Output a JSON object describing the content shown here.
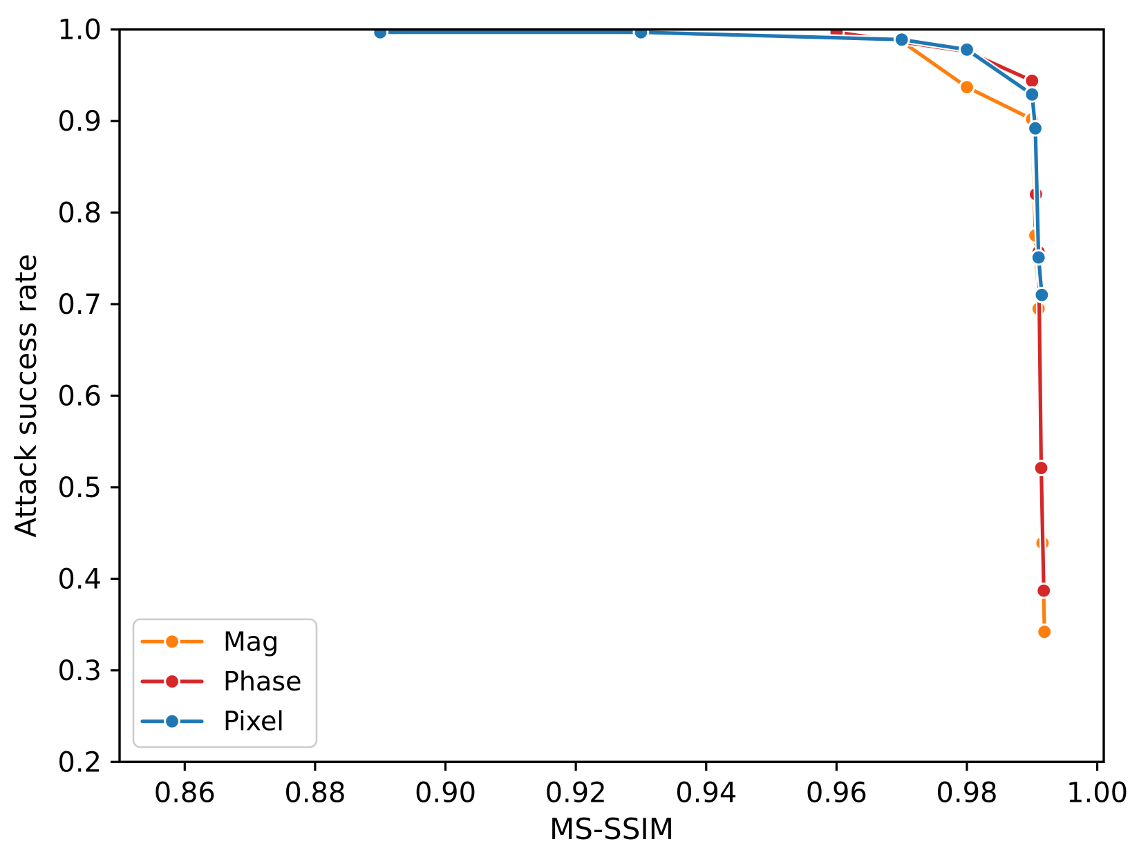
{
  "figure": {
    "background": "#ffffff",
    "axis_color": "#000000"
  },
  "chart_data": {
    "type": "line",
    "title": "",
    "xlabel": "MS-SSIM",
    "ylabel": "Attack success rate",
    "xlim": [
      0.85,
      1.001
    ],
    "ylim": [
      0.2,
      1.0
    ],
    "grid": false,
    "xticks": {
      "values": [
        0.86,
        0.88,
        0.9,
        0.92,
        0.94,
        0.96,
        0.98,
        1.0
      ],
      "labels": [
        "0.86",
        "0.88",
        "0.90",
        "0.92",
        "0.94",
        "0.96",
        "0.98",
        "1.00"
      ]
    },
    "yticks": {
      "values": [
        0.2,
        0.3,
        0.4,
        0.5,
        0.6,
        0.7,
        0.8,
        0.9,
        1.0
      ],
      "labels": [
        "0.2",
        "0.3",
        "0.4",
        "0.5",
        "0.6",
        "0.7",
        "0.8",
        "0.9",
        "1.0"
      ]
    },
    "legend": {
      "position": "lower-left",
      "entries": [
        "Mag",
        "Phase",
        "Pixel"
      ]
    },
    "series": [
      {
        "name": "Mag",
        "color": "#ff7f0e",
        "marker": "circle",
        "points": [
          [
            0.96,
            0.997
          ],
          [
            0.97,
            0.987
          ],
          [
            0.98,
            0.937
          ],
          [
            0.99,
            0.902
          ],
          [
            0.9905,
            0.775
          ],
          [
            0.991,
            0.695
          ],
          [
            0.9916,
            0.439
          ],
          [
            0.9919,
            0.342
          ]
        ]
      },
      {
        "name": "Phase",
        "color": "#d62728",
        "marker": "circle",
        "points": [
          [
            0.96,
            0.997
          ],
          [
            0.98,
            0.976
          ],
          [
            0.99,
            0.944
          ],
          [
            0.9906,
            0.82
          ],
          [
            0.991,
            0.757
          ],
          [
            0.9914,
            0.521
          ],
          [
            0.9918,
            0.387
          ]
        ]
      },
      {
        "name": "Pixel",
        "color": "#1f77b4",
        "marker": "circle",
        "points": [
          [
            0.89,
            0.997
          ],
          [
            0.93,
            0.997
          ],
          [
            0.97,
            0.989
          ],
          [
            0.98,
            0.978
          ],
          [
            0.99,
            0.929
          ],
          [
            0.9905,
            0.892
          ],
          [
            0.991,
            0.751
          ],
          [
            0.9915,
            0.71
          ]
        ]
      }
    ]
  }
}
